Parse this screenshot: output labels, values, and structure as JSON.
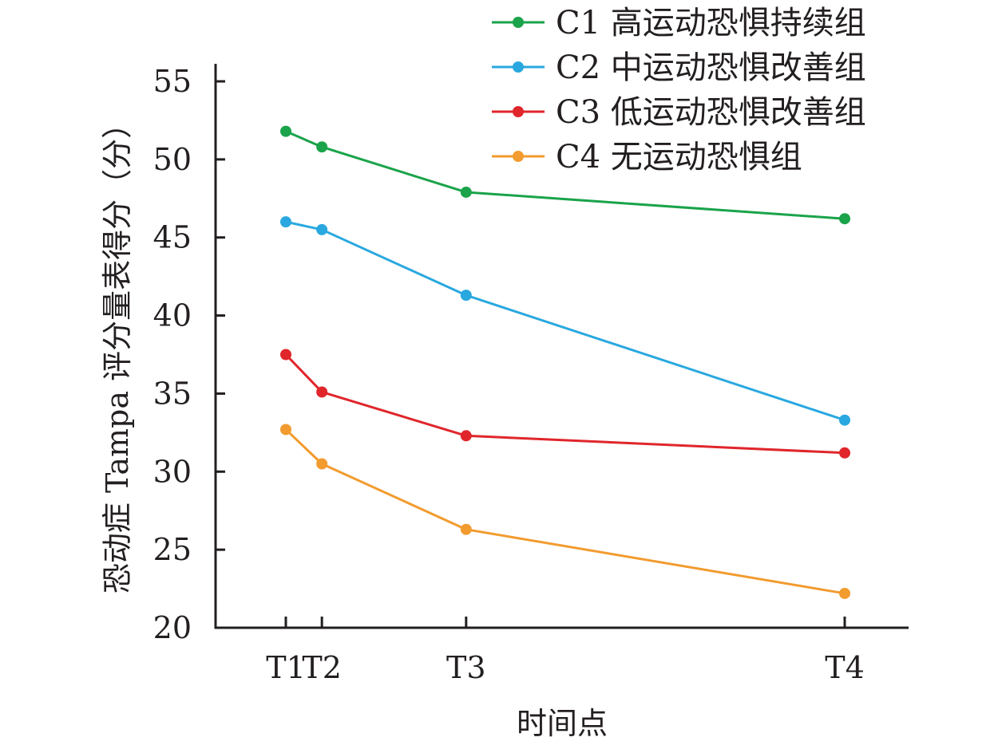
{
  "chart_data": {
    "type": "line",
    "xlabel": "时间点",
    "ylabel": "恐动症 Tampa 评分量表得分（分）",
    "x_ticks": [
      {
        "label": "T1",
        "value": 0
      },
      {
        "label": "T2",
        "value": 1
      },
      {
        "label": "T3",
        "value": 5
      },
      {
        "label": "T4",
        "value": 15.5
      }
    ],
    "xlim": [
      -2,
      18
    ],
    "ylim": [
      20,
      55
    ],
    "y_ticks": [
      20,
      25,
      30,
      35,
      40,
      45,
      50,
      55
    ],
    "grid": false,
    "legend_position": "top-right",
    "series": [
      {
        "name": "C1 高运动恐惧持续组",
        "color": "#1aa34a",
        "values": [
          51.8,
          50.8,
          47.9,
          46.2
        ]
      },
      {
        "name": "C2 中运动恐惧改善组",
        "color": "#29a8df",
        "values": [
          46.0,
          45.5,
          41.3,
          33.3
        ]
      },
      {
        "name": "C3 低运动恐惧改善组",
        "color": "#e0262b",
        "values": [
          37.5,
          35.1,
          32.3,
          31.2
        ]
      },
      {
        "name": "C4 无运动恐惧组",
        "color": "#f29b2e",
        "values": [
          32.7,
          30.5,
          26.3,
          22.2
        ]
      }
    ]
  }
}
